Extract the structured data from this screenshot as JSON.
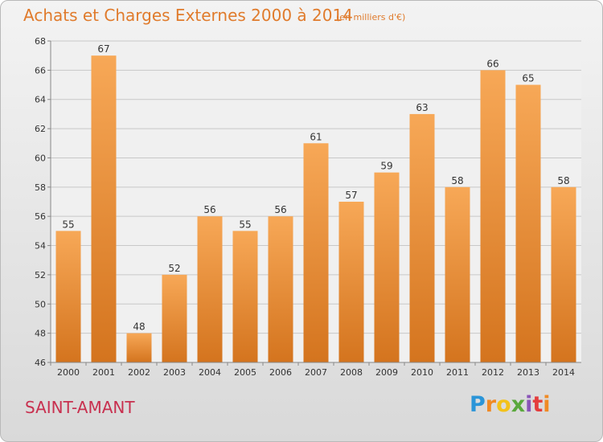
{
  "chart_data": {
    "type": "bar",
    "title": "Achats et Charges Externes 2000 à 2014",
    "subtitle": "(en milliers d'€)",
    "categories": [
      "2000",
      "2001",
      "2002",
      "2003",
      "2004",
      "2005",
      "2006",
      "2007",
      "2008",
      "2009",
      "2010",
      "2011",
      "2012",
      "2013",
      "2014"
    ],
    "values": [
      55,
      67,
      48,
      52,
      56,
      55,
      56,
      61,
      57,
      59,
      63,
      58,
      66,
      65,
      58
    ],
    "ylim": [
      46,
      68
    ],
    "yticks": [
      46,
      48,
      50,
      52,
      54,
      56,
      58,
      60,
      62,
      64,
      66,
      68
    ],
    "grid": true,
    "xlabel": "",
    "ylabel": "",
    "bar_color_top": "#f7a857",
    "bar_color_bottom": "#d4741e"
  },
  "footer": {
    "commune": "SAINT-AMANT",
    "logo_letters": [
      "P",
      "r",
      "o",
      "x",
      "i",
      "t",
      "i"
    ]
  }
}
